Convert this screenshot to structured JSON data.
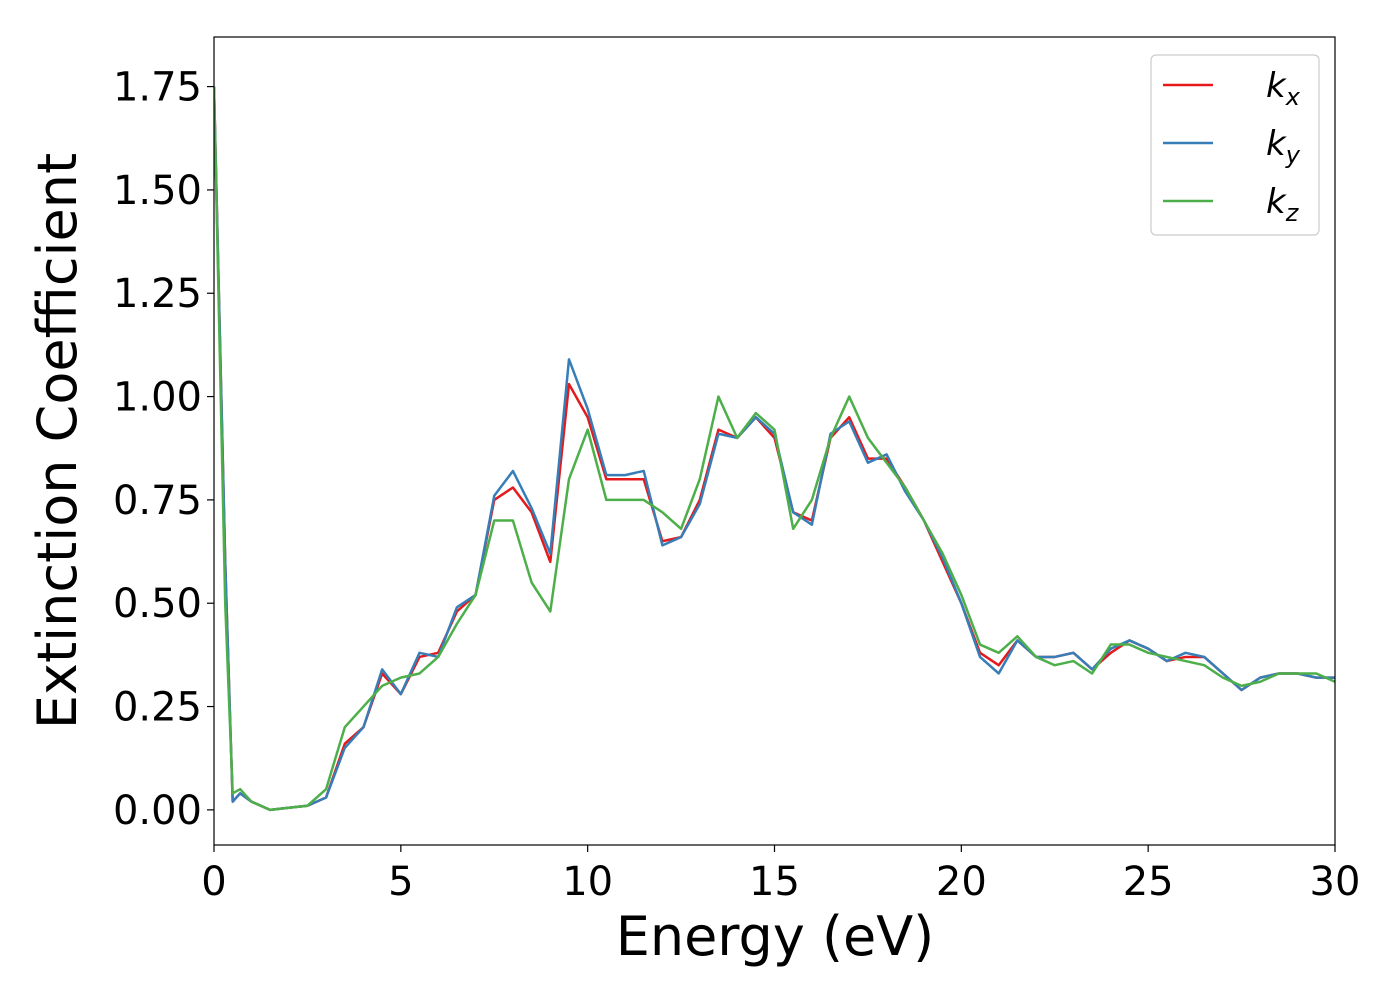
{
  "chart_data": {
    "type": "line",
    "xlabel": "Energy (eV)",
    "ylabel": "Extinction Coefficient",
    "x": [
      0,
      0.3,
      0.5,
      0.7,
      1,
      1.5,
      2,
      2.5,
      3,
      3.5,
      4,
      4.5,
      5,
      5.5,
      6,
      6.5,
      7,
      7.5,
      8,
      8.5,
      9,
      9.5,
      10,
      10.5,
      11,
      11.5,
      12,
      12.5,
      13,
      13.5,
      14,
      14.5,
      15,
      15.5,
      16,
      16.5,
      17,
      17.5,
      18,
      18.5,
      19,
      19.5,
      20,
      20.5,
      21,
      21.5,
      22,
      22.5,
      23,
      23.5,
      24,
      24.5,
      25,
      25.5,
      26,
      26.5,
      27,
      27.5,
      28,
      28.5,
      29,
      29.5,
      30
    ],
    "series": [
      {
        "name": "kx",
        "color": "#e41a1c",
        "values": [
          1.75,
          0.6,
          0.02,
          0.04,
          0.02,
          0.0,
          0.005,
          0.01,
          0.03,
          0.16,
          0.2,
          0.33,
          0.28,
          0.37,
          0.38,
          0.48,
          0.52,
          0.75,
          0.78,
          0.72,
          0.6,
          1.03,
          0.95,
          0.8,
          0.8,
          0.8,
          0.65,
          0.66,
          0.75,
          0.92,
          0.9,
          0.95,
          0.9,
          0.72,
          0.7,
          0.9,
          0.95,
          0.85,
          0.85,
          0.78,
          0.7,
          0.6,
          0.5,
          0.38,
          0.35,
          0.41,
          0.37,
          0.37,
          0.38,
          0.34,
          0.38,
          0.41,
          0.39,
          0.36,
          0.37,
          0.37,
          0.33,
          0.29,
          0.32,
          0.33,
          0.33,
          0.32,
          0.32
        ]
      },
      {
        "name": "ky",
        "color": "#377eb8",
        "values": [
          1.75,
          0.6,
          0.02,
          0.04,
          0.02,
          0.0,
          0.005,
          0.01,
          0.03,
          0.15,
          0.2,
          0.34,
          0.28,
          0.38,
          0.37,
          0.49,
          0.52,
          0.76,
          0.82,
          0.73,
          0.62,
          1.09,
          0.97,
          0.81,
          0.81,
          0.82,
          0.64,
          0.66,
          0.74,
          0.91,
          0.9,
          0.95,
          0.91,
          0.72,
          0.69,
          0.91,
          0.94,
          0.84,
          0.86,
          0.77,
          0.7,
          0.61,
          0.5,
          0.37,
          0.33,
          0.41,
          0.37,
          0.37,
          0.38,
          0.34,
          0.39,
          0.41,
          0.39,
          0.36,
          0.38,
          0.37,
          0.33,
          0.29,
          0.32,
          0.33,
          0.33,
          0.32,
          0.32
        ]
      },
      {
        "name": "kz",
        "color": "#4daf4a",
        "values": [
          1.75,
          0.5,
          0.04,
          0.05,
          0.02,
          0.0,
          0.005,
          0.01,
          0.05,
          0.2,
          0.25,
          0.3,
          0.32,
          0.33,
          0.37,
          0.45,
          0.52,
          0.7,
          0.7,
          0.55,
          0.48,
          0.8,
          0.92,
          0.75,
          0.75,
          0.75,
          0.72,
          0.68,
          0.8,
          1.0,
          0.9,
          0.96,
          0.92,
          0.68,
          0.75,
          0.9,
          1.0,
          0.9,
          0.84,
          0.78,
          0.7,
          0.62,
          0.52,
          0.4,
          0.38,
          0.42,
          0.37,
          0.35,
          0.36,
          0.33,
          0.4,
          0.4,
          0.38,
          0.37,
          0.36,
          0.35,
          0.32,
          0.3,
          0.31,
          0.33,
          0.33,
          0.33,
          0.31
        ]
      }
    ],
    "xlim": [
      0,
      30
    ],
    "xticks": [
      0,
      5,
      10,
      15,
      20,
      25,
      30
    ],
    "ylim": [
      -0.085,
      1.87
    ],
    "yticks": [
      {
        "value": 0,
        "label": "0.00"
      },
      {
        "value": 0.25,
        "label": "0.25"
      },
      {
        "value": 0.5,
        "label": "0.50"
      },
      {
        "value": 0.75,
        "label": "0.75"
      },
      {
        "value": 1.0,
        "label": "1.00"
      },
      {
        "value": 1.25,
        "label": "1.25"
      },
      {
        "value": 1.5,
        "label": "1.50"
      },
      {
        "value": 1.75,
        "label": "1.75"
      }
    ],
    "legend": "upper right",
    "grid": false
  }
}
